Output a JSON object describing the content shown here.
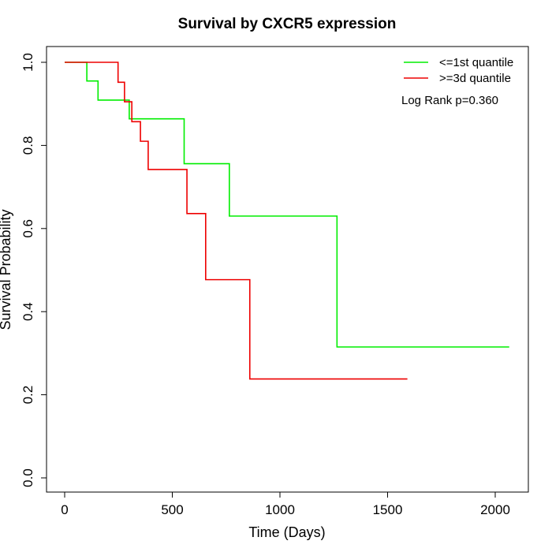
{
  "chart_data": {
    "type": "line",
    "title": "Survival by CXCR5 expression",
    "xlabel": "Time (Days)",
    "ylabel": "Survival Probability",
    "xlim": [
      0,
      2070
    ],
    "ylim": [
      0,
      1.0
    ],
    "x_ticks": [
      0,
      500,
      1000,
      1500,
      2000
    ],
    "x_tick_labels": [
      "0",
      "500",
      "1000",
      "1500",
      "2000"
    ],
    "y_ticks": [
      0.0,
      0.2,
      0.4,
      0.6,
      0.8,
      1.0
    ],
    "y_tick_labels": [
      "0.0",
      "0.2",
      "0.4",
      "0.6",
      "0.8",
      "1.0"
    ],
    "grid": false,
    "legend_position": "top-right",
    "annotation": "Log Rank p=0.360",
    "series": [
      {
        "name": "<=1st quantile",
        "color": "#00ee00",
        "step": true,
        "x": [
          0,
          103,
          155,
          300,
          555,
          765,
          1265,
          2065
        ],
        "y": [
          1.0,
          0.955,
          0.909,
          0.864,
          0.756,
          0.63,
          0.315,
          0.315
        ]
      },
      {
        "name": ">=3d quantile",
        "color": "#ee0000",
        "step": true,
        "x": [
          0,
          248,
          278,
          312,
          352,
          388,
          568,
          655,
          860,
          1592
        ],
        "y": [
          1.0,
          0.952,
          0.905,
          0.857,
          0.81,
          0.742,
          0.636,
          0.477,
          0.238,
          0.238
        ]
      }
    ]
  }
}
